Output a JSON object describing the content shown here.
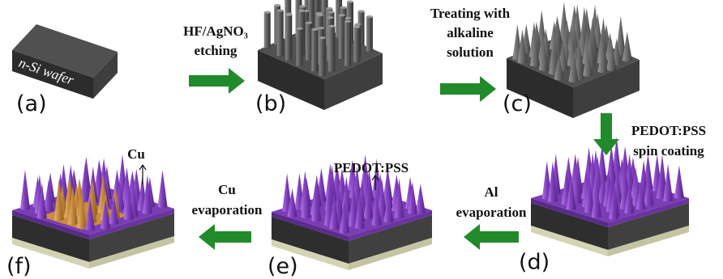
{
  "panels": [
    {
      "label": "(a)",
      "text": "n-Si wafer"
    },
    {
      "label": "(b)"
    },
    {
      "label": "(c)"
    },
    {
      "label": "(d)"
    },
    {
      "label": "(e)"
    },
    {
      "label": "(f)"
    }
  ],
  "steps": [
    {
      "lines": [
        "HF/AgNO₃",
        "etching"
      ]
    },
    {
      "lines": [
        "Treating with",
        "alkaline",
        "solution"
      ]
    },
    {
      "lines": [
        "PEDOT:PSS",
        "spin coating"
      ]
    },
    {
      "lines": [
        "Al",
        "evaporation"
      ]
    },
    {
      "lines": [
        "Cu",
        "evaporation"
      ]
    }
  ],
  "annotations": [
    "PEDOT:PSS",
    "Cu"
  ]
}
